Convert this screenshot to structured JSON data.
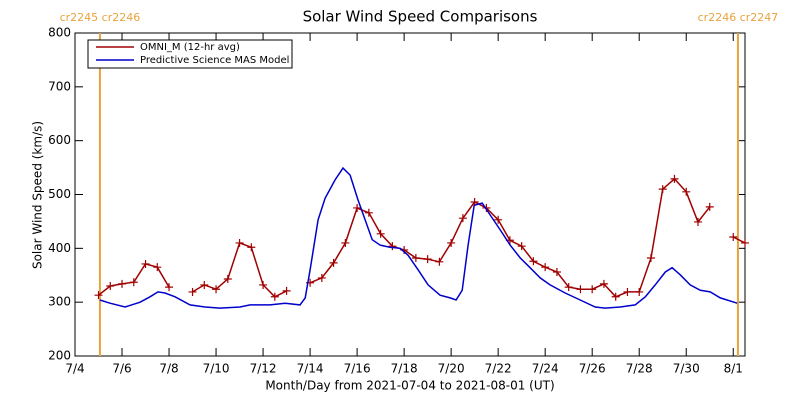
{
  "chart_data": {
    "type": "line",
    "title": "Solar Wind Speed Comparisons",
    "x_label": "Month/Day from 2021-07-04 to 2021-08-01 (UT)",
    "y_label": "Solar Wind Speed (km/s)",
    "xlim": [
      0,
      28.5
    ],
    "ylim": [
      200,
      800
    ],
    "xticks": [
      {
        "value": 0,
        "label": "7/4"
      },
      {
        "value": 2,
        "label": "7/6"
      },
      {
        "value": 4,
        "label": "7/8"
      },
      {
        "value": 6,
        "label": "7/10"
      },
      {
        "value": 8,
        "label": "7/12"
      },
      {
        "value": 10,
        "label": "7/14"
      },
      {
        "value": 12,
        "label": "7/16"
      },
      {
        "value": 14,
        "label": "7/18"
      },
      {
        "value": 16,
        "label": "7/20"
      },
      {
        "value": 18,
        "label": "7/22"
      },
      {
        "value": 20,
        "label": "7/24"
      },
      {
        "value": 22,
        "label": "7/26"
      },
      {
        "value": 24,
        "label": "7/28"
      },
      {
        "value": 26,
        "label": "7/30"
      },
      {
        "value": 28,
        "label": "8/1"
      }
    ],
    "yticks": [
      200,
      300,
      400,
      500,
      600,
      700,
      800
    ],
    "legend": "upper left",
    "annotations": [
      {
        "x": 1.06,
        "label": "cr2245 cr2246",
        "color": "#e8a33c"
      },
      {
        "x": 28.2,
        "label": "cr2246 cr2247",
        "color": "#e8a33c"
      }
    ],
    "series": [
      {
        "name": "OMNI_M (12-hr avg)",
        "color": "#a00000",
        "marker": "+",
        "x": [
          1.0,
          1.5,
          2.0,
          2.5,
          3.0,
          3.5,
          4.0,
          4.5,
          5.0,
          5.5,
          6.0,
          6.5,
          7.0,
          7.5,
          8.0,
          8.5,
          9.0,
          9.5,
          10.0,
          10.5,
          11.0,
          11.5,
          12.0,
          12.5,
          13.0,
          13.5,
          14.0,
          14.5,
          15.0,
          15.5,
          16.0,
          16.5,
          17.0,
          17.5,
          18.0,
          18.5,
          19.0,
          19.5,
          20.0,
          20.5,
          21.0,
          21.5,
          22.0,
          22.5,
          23.0,
          23.5,
          24.0,
          24.5,
          25.0,
          25.5,
          26.0,
          26.5,
          27.0,
          27.5,
          28.0,
          28.5
        ],
        "values": [
          313,
          330,
          334,
          337,
          371,
          365,
          328,
          null,
          319,
          332,
          324,
          343,
          410,
          402,
          332,
          310,
          321,
          null,
          336,
          345,
          373,
          410,
          475,
          466,
          427,
          404,
          397,
          382,
          380,
          375,
          410,
          456,
          486,
          475,
          453,
          415,
          404,
          376,
          365,
          356,
          328,
          324,
          324,
          334,
          310,
          319,
          319,
          382,
          510,
          529,
          505,
          449,
          477,
          null,
          421,
          410
        ]
      },
      {
        "name": "Predictive Science MAS Model",
        "color": "#0000cc",
        "x": [
          1.06,
          1.49,
          2.13,
          2.77,
          3.19,
          3.53,
          3.83,
          4.26,
          4.89,
          5.53,
          6.17,
          7.02,
          7.45,
          8.3,
          8.94,
          9.57,
          9.79,
          10.0,
          10.34,
          10.64,
          11.06,
          11.4,
          11.7,
          12.04,
          12.34,
          12.64,
          12.98,
          13.4,
          13.83,
          14.17,
          14.6,
          15.02,
          15.53,
          15.96,
          16.21,
          16.47,
          16.72,
          16.98,
          17.32,
          17.66,
          18.09,
          18.51,
          18.94,
          19.36,
          19.79,
          20.21,
          20.85,
          21.49,
          22.13,
          22.55,
          23.19,
          23.83,
          24.26,
          24.68,
          25.11,
          25.4,
          25.74,
          26.17,
          26.6,
          27.02,
          27.45,
          28.17
        ],
        "values": [
          304,
          298,
          291,
          300,
          310,
          319,
          317,
          310,
          295,
          291,
          289,
          291,
          295,
          295,
          298,
          295,
          308,
          360,
          453,
          493,
          527,
          549,
          536,
          490,
          453,
          416,
          406,
          402,
          400,
          387,
          360,
          332,
          313,
          308,
          304,
          322,
          406,
          480,
          484,
          462,
          434,
          406,
          382,
          364,
          345,
          332,
          317,
          304,
          291,
          289,
          291,
          295,
          310,
          332,
          356,
          364,
          351,
          332,
          322,
          319,
          308,
          298
        ]
      }
    ]
  }
}
